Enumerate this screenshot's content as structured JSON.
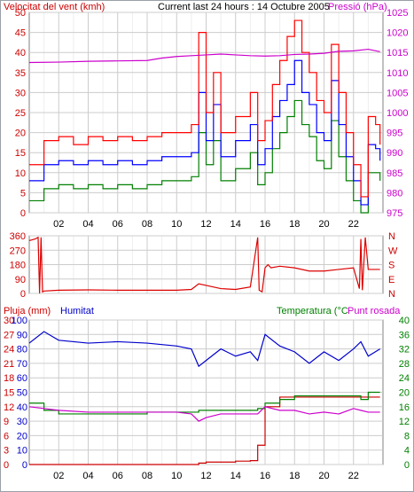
{
  "chart_data": [
    {
      "type": "line",
      "title": "Current last 24 hours : 14 Octubre 2005",
      "left_label": "Velocitat del vent (kmh)",
      "right_label": "Pressió (hPa)",
      "x_ticks": [
        "02",
        "04",
        "06",
        "08",
        "10",
        "12",
        "14",
        "16",
        "18",
        "20",
        "22"
      ],
      "y_ticks": [
        "0",
        "5",
        "10",
        "15",
        "20",
        "25",
        "30",
        "35",
        "40",
        "45",
        "50"
      ],
      "y_right_ticks": [
        "975",
        "980",
        "985",
        "990",
        "995",
        "1000",
        "1005",
        "1010",
        "1015",
        "1020",
        "1025"
      ],
      "ylim": [
        0,
        50
      ],
      "ylim_right": [
        975,
        1025
      ],
      "grid": true,
      "colors": {
        "gust": "#ff0000",
        "avg_max": "#0000ff",
        "avg_min": "#008000",
        "pressure": "#cc00cc"
      },
      "pressure_x": [
        0,
        2,
        4,
        6,
        8,
        9,
        10,
        11,
        12,
        13,
        14,
        15,
        16,
        17,
        18,
        19,
        20,
        21,
        22,
        23,
        23.8
      ],
      "pressure_y": [
        1012.5,
        1012.6,
        1012.8,
        1012.9,
        1013.0,
        1013.6,
        1014.0,
        1014.2,
        1014.4,
        1014.6,
        1014.4,
        1014.2,
        1014.1,
        1014.2,
        1014.5,
        1014.6,
        1014.8,
        1015.3,
        1015.4,
        1015.8,
        1015.2
      ],
      "wind_x": [
        0,
        1,
        2,
        3,
        4,
        5,
        6,
        7,
        8,
        9,
        10,
        11,
        11.5,
        12,
        12.5,
        13,
        14,
        15,
        15.5,
        16,
        16.5,
        17,
        17.5,
        18,
        18.5,
        19,
        19.5,
        20,
        20.5,
        21,
        21.5,
        22,
        22.5,
        23,
        23.5,
        23.8
      ],
      "wind_gust": [
        12,
        18,
        19,
        17,
        19,
        18,
        19,
        18,
        19,
        20,
        20,
        22,
        45,
        25,
        35,
        20,
        24,
        30,
        18,
        23,
        32,
        38,
        44,
        48,
        40,
        35,
        28,
        25,
        42,
        30,
        20,
        12,
        4,
        24,
        22,
        17
      ],
      "wind_avg_max": [
        8,
        12,
        13,
        12,
        13,
        12,
        13,
        12,
        13,
        14,
        14,
        15,
        30,
        18,
        27,
        14,
        18,
        22,
        12,
        16,
        24,
        28,
        32,
        38,
        30,
        27,
        20,
        18,
        33,
        22,
        14,
        8,
        2,
        17,
        16,
        13
      ],
      "wind_avg_min": [
        3,
        6,
        7,
        6,
        7,
        6,
        7,
        6,
        7,
        8,
        8,
        9,
        20,
        12,
        18,
        8,
        11,
        15,
        7,
        10,
        16,
        20,
        24,
        28,
        22,
        19,
        13,
        11,
        23,
        14,
        8,
        3,
        0,
        10,
        10,
        8
      ]
    },
    {
      "type": "line",
      "title": "",
      "y_ticks": [
        "0",
        "90",
        "180",
        "270",
        "360"
      ],
      "y_right_ticks": [
        "N",
        "E",
        "S",
        "W",
        "N"
      ],
      "ylim": [
        0,
        360
      ],
      "grid": true,
      "colors": {
        "direction": "#dd0000"
      },
      "x": [
        0,
        0.4,
        0.6,
        0.7,
        0.8,
        0.9,
        1,
        2,
        4,
        6,
        8,
        10,
        11,
        11.5,
        12,
        13,
        14,
        15,
        15.5,
        15.6,
        15.8,
        16,
        16.2,
        16.4,
        17,
        18,
        19,
        20,
        21,
        22,
        22.4,
        22.5,
        22.6,
        22.8,
        23,
        23.8
      ],
      "direction": [
        330,
        340,
        350,
        0,
        350,
        10,
        15,
        20,
        22,
        20,
        20,
        20,
        25,
        60,
        50,
        30,
        25,
        40,
        350,
        20,
        10,
        160,
        180,
        160,
        170,
        160,
        140,
        140,
        150,
        160,
        30,
        340,
        20,
        350,
        150,
        150
      ]
    },
    {
      "type": "line",
      "title": "",
      "left_label": "Pluja (mm)",
      "mid_label": "Humitat",
      "right_label": "Temperatura (°C",
      "right_label2": "Punt rosada",
      "y_ticks_rain": [
        "0",
        "3",
        "6",
        "9",
        "12",
        "15",
        "18",
        "21",
        "24",
        "27",
        "30"
      ],
      "y_ticks_hum": [
        "0",
        "10",
        "20",
        "30",
        "40",
        "50",
        "60",
        "70",
        "80",
        "90",
        "100"
      ],
      "y_right_ticks": [
        "0",
        "4",
        "8",
        "12",
        "16",
        "20",
        "24",
        "28",
        "32",
        "36",
        "40"
      ],
      "ylim_rain": [
        0,
        30
      ],
      "ylim_hum": [
        0,
        100
      ],
      "ylim_temp": [
        0,
        40
      ],
      "grid": true,
      "colors": {
        "rain": "#cc0000",
        "humidity": "#0000cc",
        "temperature": "#008000",
        "dew_point": "#cc00cc"
      },
      "x": [
        0,
        1,
        2,
        4,
        6,
        8,
        10,
        11,
        11.5,
        12,
        13,
        14,
        15,
        15.5,
        16,
        17,
        18,
        19,
        20,
        21,
        22,
        22.5,
        23,
        23.8
      ],
      "rain": [
        0,
        0,
        0,
        0,
        0,
        0,
        0,
        0,
        0.3,
        0.5,
        0.5,
        0.7,
        0.8,
        4,
        12,
        14,
        14,
        14,
        14,
        14,
        14,
        14,
        14,
        14
      ],
      "humidity": [
        84,
        92,
        86,
        84,
        85,
        84,
        82,
        80,
        68,
        72,
        80,
        75,
        78,
        72,
        90,
        82,
        78,
        70,
        78,
        72,
        80,
        85,
        75,
        80
      ],
      "temperature": [
        17,
        15,
        14,
        14,
        14,
        14.5,
        14.5,
        14.5,
        15,
        15,
        15,
        15,
        15,
        15.5,
        17,
        18,
        19,
        19,
        19,
        19,
        19,
        18,
        20,
        20
      ],
      "dew_point": [
        16,
        15.5,
        15,
        14.5,
        14.5,
        14.5,
        14.5,
        14,
        12,
        13,
        14,
        14,
        14,
        14,
        16,
        15,
        15,
        14,
        14.5,
        14,
        15.5,
        15,
        14.5,
        14.5
      ]
    }
  ]
}
